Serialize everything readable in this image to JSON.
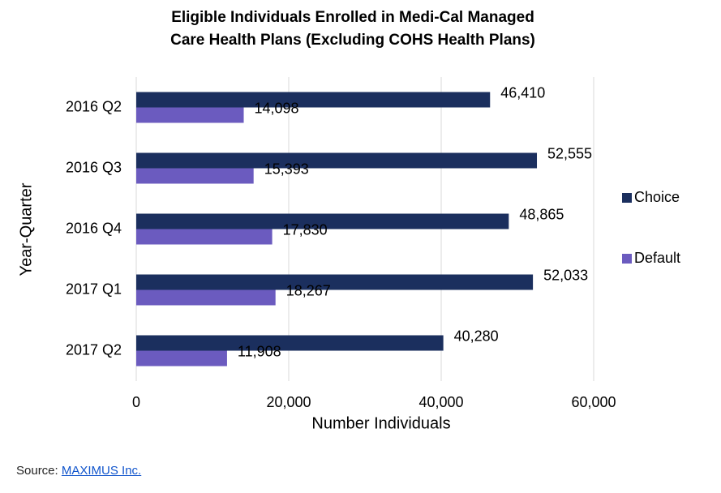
{
  "chart_data": {
    "type": "bar",
    "orientation": "horizontal",
    "title": [
      "Eligible Individuals Enrolled in Medi-Cal Managed",
      "Care Health Plans (Excluding COHS Health Plans)"
    ],
    "x_label": "Number Individuals",
    "y_label": "Year-Quarter",
    "categories": [
      "2016 Q2",
      "2016 Q3",
      "2016 Q4",
      "2017 Q1",
      "2017 Q2"
    ],
    "series": [
      {
        "name": "Choice",
        "color": "#1b2f5e",
        "values": [
          46410,
          52555,
          48865,
          52033,
          40280
        ],
        "value_labels": [
          "46,410",
          "52,555",
          "48,865",
          "52,033",
          "40,280"
        ]
      },
      {
        "name": "Default",
        "color": "#6b5bbf",
        "values": [
          14098,
          15393,
          17830,
          18267,
          11908
        ],
        "value_labels": [
          "14,098",
          "15,393",
          "17,830",
          "18,267",
          "11,908"
        ]
      }
    ],
    "xlim": [
      0,
      60000
    ],
    "xticks": [
      0,
      {
        "value": 20000,
        "label": "20,000"
      },
      {
        "value": 40000,
        "label": "40,000"
      },
      {
        "value": 60000,
        "label": "60,000"
      }
    ],
    "grid": true,
    "legend": "right"
  },
  "source": {
    "prefix": "Source:",
    "link": "MAXIMUS Inc."
  }
}
